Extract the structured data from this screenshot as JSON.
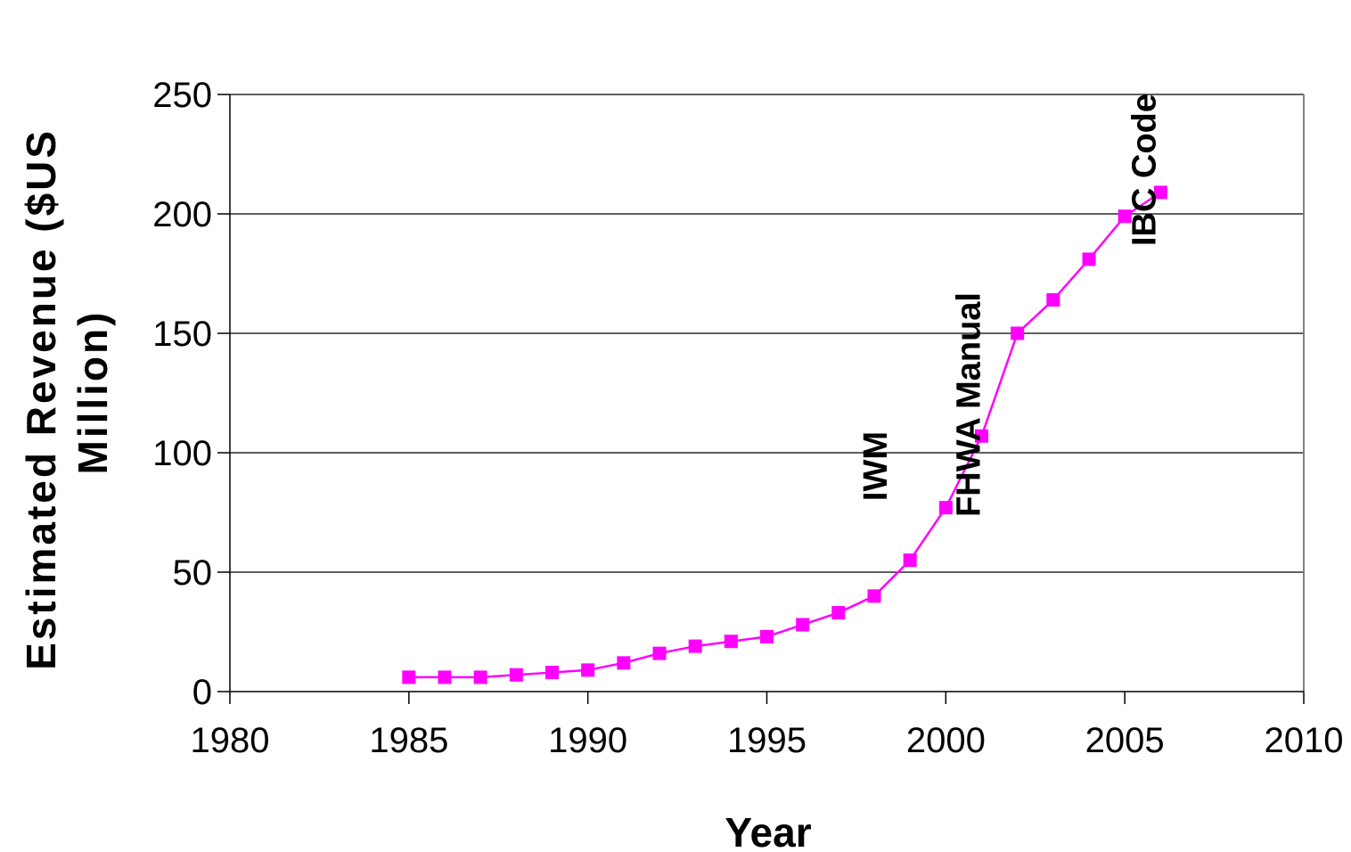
{
  "chart_data": {
    "type": "line",
    "title": "",
    "xlabel": "Year",
    "ylabel": "Estimated Revenue ($US Million)",
    "ylabel_lines": [
      "Estimated Revenue ($US",
      "Million)"
    ],
    "xlim": [
      1980,
      2010
    ],
    "ylim": [
      0,
      250
    ],
    "xticks": [
      1980,
      1985,
      1990,
      1995,
      2000,
      2005,
      2010
    ],
    "yticks": [
      0,
      50,
      100,
      150,
      200,
      250
    ],
    "grid": "horizontal",
    "legend": "none",
    "series": [
      {
        "color": "#ff00ff",
        "marker": "square",
        "x": [
          1985,
          1986,
          1987,
          1988,
          1989,
          1990,
          1991,
          1992,
          1993,
          1994,
          1995,
          1996,
          1997,
          1998,
          1999,
          2000,
          2001,
          2002,
          2003,
          2004,
          2005,
          2006
        ],
        "y": [
          6,
          6,
          6,
          7,
          8,
          9,
          12,
          16,
          19,
          21,
          23,
          28,
          33,
          40,
          55,
          77,
          107,
          150,
          164,
          181,
          199,
          209
        ]
      }
    ],
    "annotations": [
      {
        "text": "IWM",
        "x": 1998
      },
      {
        "text": "FHWA Manual",
        "x": 2000.6
      },
      {
        "text": "IBC Code",
        "x": 2005.5
      }
    ]
  }
}
